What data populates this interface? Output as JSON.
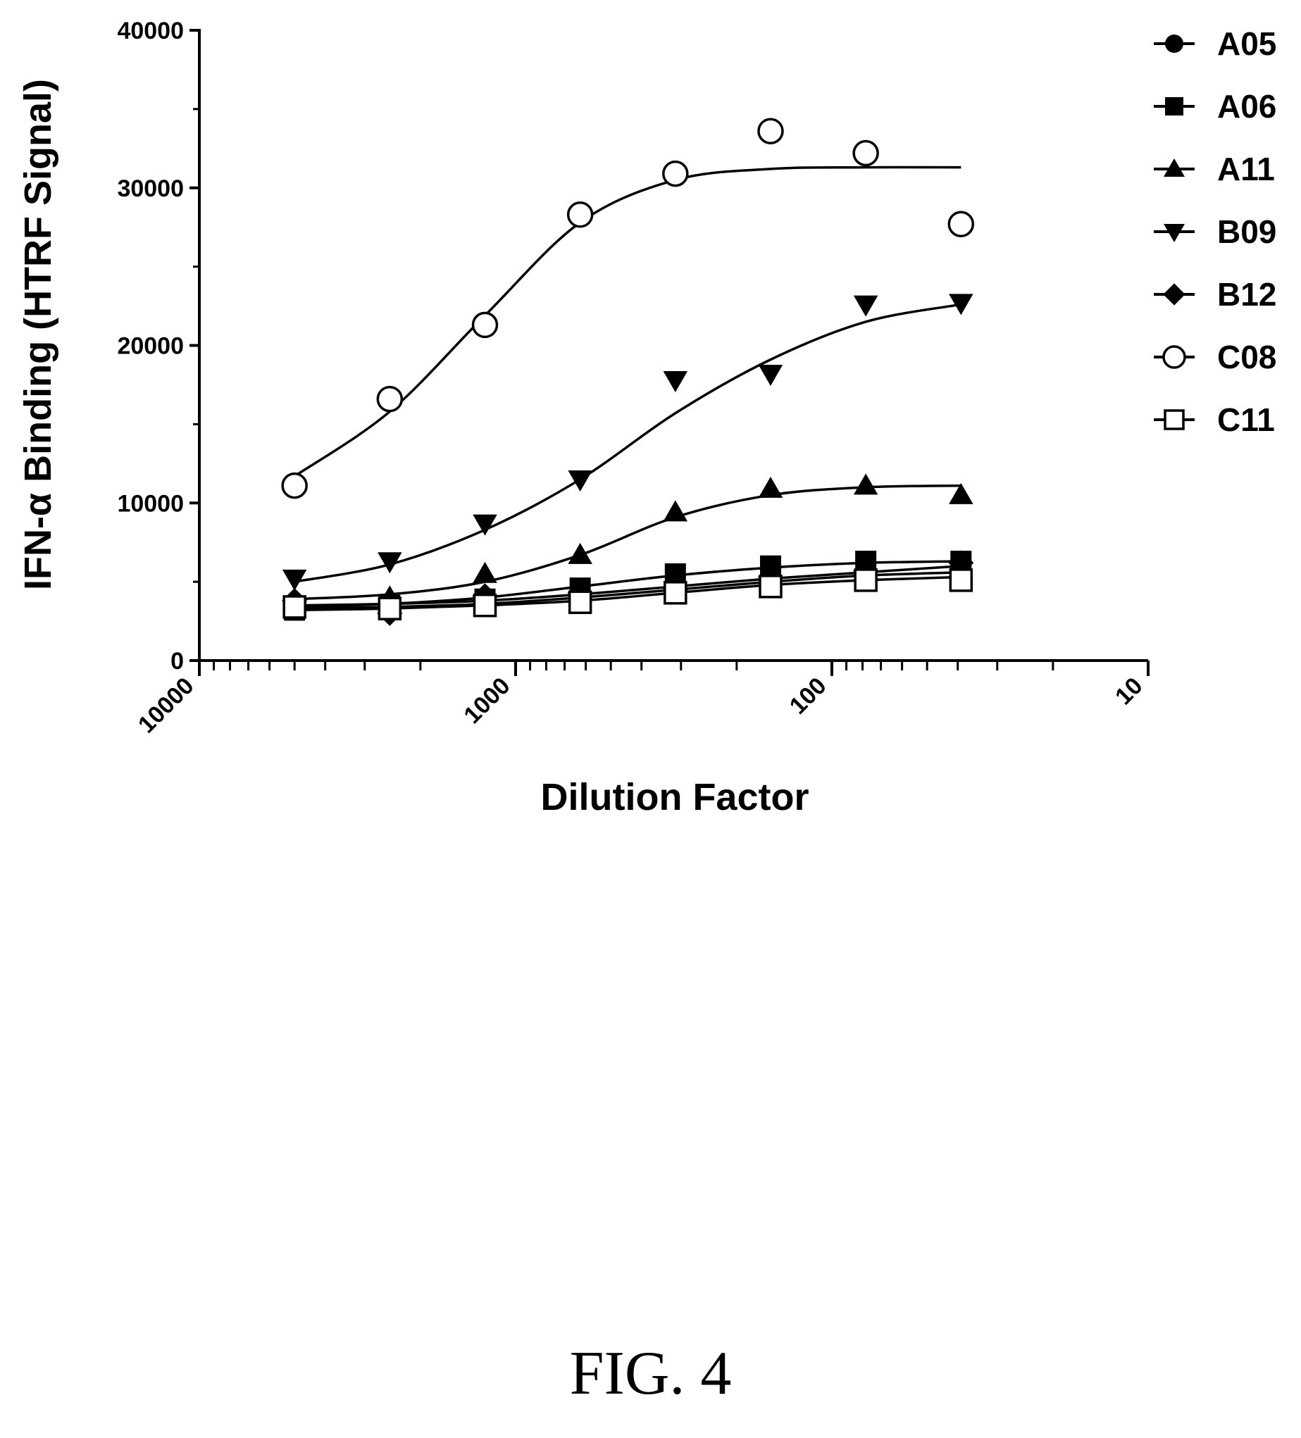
{
  "figure_caption": "FIG. 4",
  "chart_data": {
    "type": "scatter",
    "title": "",
    "xlabel": "Dilution Factor",
    "ylabel": "IFN-α Binding (HTRF Signal)",
    "x_scale": "log",
    "x_reversed": true,
    "xlim": [
      10000,
      10
    ],
    "ylim": [
      0,
      40000
    ],
    "x_ticks": [
      {
        "value": 10000,
        "label": "10000"
      },
      {
        "value": 1000,
        "label": "1000"
      },
      {
        "value": 100,
        "label": "100"
      },
      {
        "value": 10,
        "label": "10"
      }
    ],
    "y_ticks": [
      {
        "value": 0,
        "label": "0"
      },
      {
        "value": 10000,
        "label": "10000"
      },
      {
        "value": 20000,
        "label": "20000"
      },
      {
        "value": 30000,
        "label": "30000"
      },
      {
        "value": 40000,
        "label": "40000"
      }
    ],
    "grid": false,
    "legend_position": "top-right",
    "x": [
      5000,
      2500,
      1250,
      625,
      312.5,
      156.25,
      78.125,
      39.0625
    ],
    "series": [
      {
        "name": "A05",
        "marker": "filled-circle",
        "values": [
          3300,
          3200,
          3700,
          4200,
          4800,
          5200,
          5500,
          5700
        ]
      },
      {
        "name": "A06",
        "marker": "filled-square",
        "values": [
          3200,
          3500,
          3900,
          4600,
          5500,
          6000,
          6300,
          6300
        ]
      },
      {
        "name": "A11",
        "marker": "filled-triangle-up",
        "values": [
          3800,
          4000,
          5500,
          6700,
          9400,
          10900,
          11100,
          10500
        ]
      },
      {
        "name": "B09",
        "marker": "filled-triangle-down",
        "values": [
          5200,
          6300,
          8700,
          11500,
          17800,
          18200,
          22600,
          22700
        ]
      },
      {
        "name": "B12",
        "marker": "filled-diamond",
        "values": [
          3800,
          3000,
          4100,
          4300,
          4500,
          5300,
          5700,
          6200
        ]
      },
      {
        "name": "C08",
        "marker": "open-circle",
        "values": [
          11100,
          16600,
          21300,
          28300,
          30900,
          33600,
          32200,
          27700
        ]
      },
      {
        "name": "C11",
        "marker": "open-square",
        "values": [
          3400,
          3300,
          3500,
          3700,
          4300,
          4700,
          5100,
          5100
        ]
      }
    ],
    "fits": {
      "A05": [
        3300,
        3400,
        3600,
        4000,
        4500,
        5000,
        5400,
        5600
      ],
      "A06": [
        3400,
        3600,
        4000,
        4700,
        5400,
        5900,
        6200,
        6300
      ],
      "A11": [
        3900,
        4200,
        5000,
        6700,
        9100,
        10500,
        11000,
        11100
      ],
      "B09": [
        5000,
        6100,
        8300,
        11500,
        15700,
        19100,
        21500,
        22600
      ],
      "B12": [
        3500,
        3600,
        3800,
        4200,
        4700,
        5200,
        5600,
        6000
      ],
      "C08": [
        11700,
        15800,
        21900,
        27800,
        30500,
        31200,
        31300,
        31300
      ],
      "C11": [
        3200,
        3300,
        3500,
        3800,
        4300,
        4800,
        5100,
        5300
      ]
    }
  }
}
